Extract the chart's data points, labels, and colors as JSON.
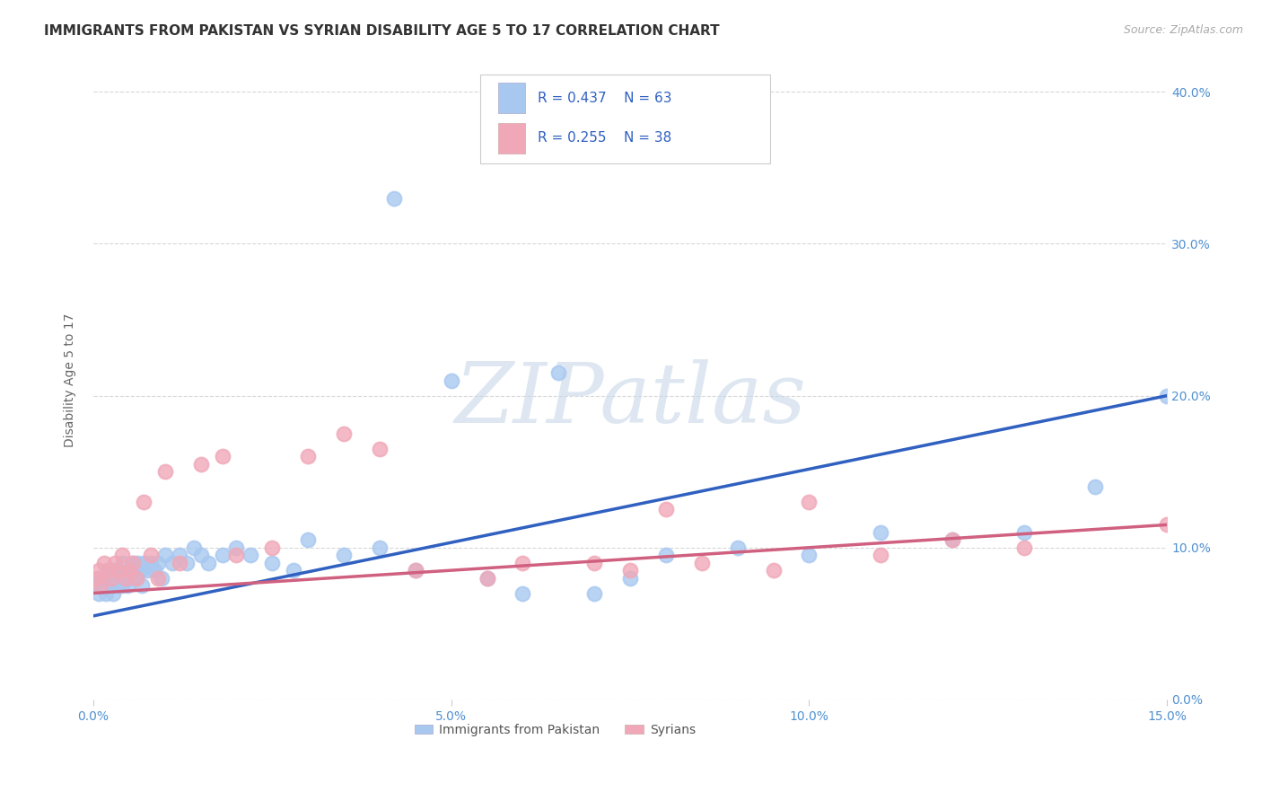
{
  "title": "IMMIGRANTS FROM PAKISTAN VS SYRIAN DISABILITY AGE 5 TO 17 CORRELATION CHART",
  "source": "Source: ZipAtlas.com",
  "ylabel": "Disability Age 5 to 17",
  "xlabel_vals": [
    0.0,
    5.0,
    10.0,
    15.0
  ],
  "ylabel_vals": [
    0.0,
    10.0,
    20.0,
    30.0,
    40.0
  ],
  "xlim": [
    0.0,
    15.0
  ],
  "ylim": [
    0.0,
    42.0
  ],
  "pakistan_R": 0.437,
  "pakistan_N": 63,
  "syrian_R": 0.255,
  "syrian_N": 38,
  "pakistan_color": "#a8c8f0",
  "syrian_color": "#f0a8b8",
  "pakistan_line_color": "#3060c0",
  "syrian_line_color": "#d06080",
  "pakistan_x": [
    0.05,
    0.08,
    0.1,
    0.12,
    0.15,
    0.18,
    0.2,
    0.22,
    0.25,
    0.28,
    0.3,
    0.32,
    0.35,
    0.38,
    0.4,
    0.42,
    0.45,
    0.48,
    0.5,
    0.52,
    0.55,
    0.58,
    0.6,
    0.62,
    0.65,
    0.68,
    0.7,
    0.75,
    0.8,
    0.85,
    0.9,
    0.95,
    1.0,
    1.1,
    1.2,
    1.3,
    1.4,
    1.5,
    1.6,
    1.8,
    2.0,
    2.2,
    2.5,
    2.8,
    3.0,
    3.5,
    4.0,
    4.5,
    5.0,
    5.5,
    6.0,
    6.5,
    7.0,
    7.5,
    8.0,
    9.0,
    10.0,
    11.0,
    12.0,
    13.0,
    14.0,
    15.0,
    4.2
  ],
  "pakistan_y": [
    7.5,
    7.0,
    8.0,
    7.5,
    8.0,
    7.0,
    8.5,
    7.5,
    8.0,
    7.0,
    8.5,
    8.0,
    7.5,
    8.0,
    7.5,
    9.0,
    8.0,
    7.5,
    8.5,
    8.0,
    9.0,
    8.5,
    8.0,
    9.0,
    8.5,
    7.5,
    9.0,
    8.5,
    9.0,
    8.5,
    9.0,
    8.0,
    9.5,
    9.0,
    9.5,
    9.0,
    10.0,
    9.5,
    9.0,
    9.5,
    10.0,
    9.5,
    9.0,
    8.5,
    10.5,
    9.5,
    10.0,
    8.5,
    21.0,
    8.0,
    7.0,
    21.5,
    7.0,
    8.0,
    9.5,
    10.0,
    9.5,
    11.0,
    10.5,
    11.0,
    14.0,
    20.0,
    33.0
  ],
  "syrian_x": [
    0.05,
    0.08,
    0.1,
    0.15,
    0.2,
    0.25,
    0.3,
    0.35,
    0.4,
    0.45,
    0.5,
    0.55,
    0.6,
    0.7,
    0.8,
    0.9,
    1.0,
    1.2,
    1.5,
    1.8,
    2.0,
    2.5,
    3.0,
    3.5,
    4.0,
    4.5,
    5.5,
    6.0,
    7.0,
    7.5,
    8.0,
    8.5,
    9.5,
    10.0,
    11.0,
    12.0,
    13.0,
    15.0
  ],
  "syrian_y": [
    8.0,
    8.5,
    7.5,
    9.0,
    8.5,
    8.0,
    9.0,
    8.5,
    9.5,
    8.0,
    8.5,
    9.0,
    8.0,
    13.0,
    9.5,
    8.0,
    15.0,
    9.0,
    15.5,
    16.0,
    9.5,
    10.0,
    16.0,
    17.5,
    16.5,
    8.5,
    8.0,
    9.0,
    9.0,
    8.5,
    12.5,
    9.0,
    8.5,
    13.0,
    9.5,
    10.5,
    10.0,
    11.5
  ],
  "pak_line_x0": 0.0,
  "pak_line_y0": 5.5,
  "pak_line_x1": 15.0,
  "pak_line_y1": 20.0,
  "syr_line_x0": 0.0,
  "syr_line_y0": 7.0,
  "syr_line_x1": 15.0,
  "syr_line_y1": 11.5,
  "background_color": "#ffffff",
  "grid_color": "#d8d8d8",
  "title_fontsize": 11,
  "axis_label_fontsize": 10,
  "tick_fontsize": 10,
  "legend_fontsize": 11,
  "watermark_text": "ZIPatlas",
  "watermark_color": "#c8d8e8",
  "bottom_legend_labels": [
    "Immigrants from Pakistan",
    "Syrians"
  ]
}
